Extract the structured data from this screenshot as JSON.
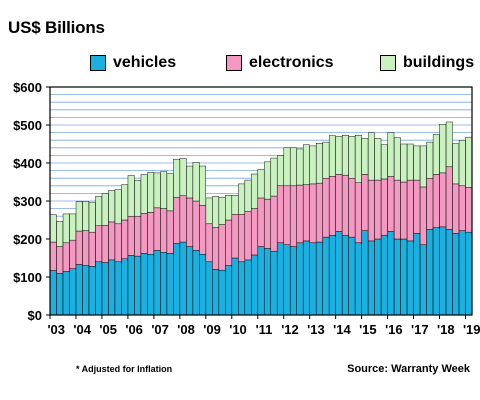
{
  "chart_data": {
    "type": "bar",
    "stacked": true,
    "title": "US$ Billions",
    "ylim": [
      0,
      600
    ],
    "yticks": [
      "$0",
      "$100",
      "$200",
      "$300",
      "$400",
      "$500",
      "$600"
    ],
    "xticks": [
      "'03",
      "'04",
      "'05",
      "'06",
      "'07",
      "'08",
      "'09",
      "'10",
      "'11",
      "'12",
      "'13",
      "'14",
      "'15",
      "'16",
      "'17",
      "'18",
      "'19"
    ],
    "grid": true,
    "legend_position": "top",
    "series": [
      {
        "name": "vehicles",
        "color": "#1cb0e0",
        "values": [
          117,
          110,
          115,
          122,
          133,
          130,
          128,
          140,
          138,
          145,
          140,
          148,
          157,
          155,
          162,
          160,
          170,
          165,
          162,
          188,
          192,
          180,
          170,
          160,
          140,
          120,
          118,
          130,
          150,
          140,
          145,
          158,
          180,
          175,
          168,
          190,
          185,
          180,
          190,
          195,
          190,
          192,
          205,
          210,
          220,
          210,
          205,
          190,
          222,
          195,
          200,
          210,
          220,
          200,
          200,
          195,
          215,
          185,
          225,
          230,
          232,
          225,
          215,
          222,
          218
        ]
      },
      {
        "name": "electronics",
        "color": "#f49ac2",
        "values": [
          75,
          70,
          75,
          75,
          88,
          92,
          90,
          95,
          98,
          100,
          100,
          102,
          103,
          105,
          105,
          110,
          112,
          115,
          112,
          122,
          122,
          128,
          130,
          128,
          100,
          110,
          120,
          120,
          115,
          125,
          128,
          122,
          128,
          130,
          145,
          150,
          155,
          160,
          152,
          148,
          155,
          155,
          155,
          155,
          150,
          158,
          155,
          158,
          148,
          160,
          155,
          148,
          145,
          155,
          150,
          160,
          140,
          152,
          135,
          140,
          142,
          165,
          130,
          118,
          118
        ]
      },
      {
        "name": "buildings",
        "color": "#c9f2c0",
        "values": [
          72,
          66,
          76,
          69,
          77,
          77,
          79,
          77,
          84,
          83,
          90,
          93,
          107,
          94,
          103,
          105,
          92,
          97,
          98,
          100,
          98,
          84,
          102,
          104,
          68,
          82,
          72,
          65,
          50,
          80,
          82,
          91,
          75,
          98,
          100,
          80,
          100,
          100,
          95,
          105,
          100,
          105,
          95,
          107,
          100,
          105,
          110,
          125,
          95,
          125,
          110,
          90,
          115,
          112,
          100,
          95,
          90,
          108,
          95,
          105,
          128,
          118,
          106,
          120,
          132
        ]
      }
    ]
  },
  "page": {
    "title": "US$ Billions",
    "footnote": "* Adjusted for Inflation",
    "source": "Source: Warranty Week"
  }
}
